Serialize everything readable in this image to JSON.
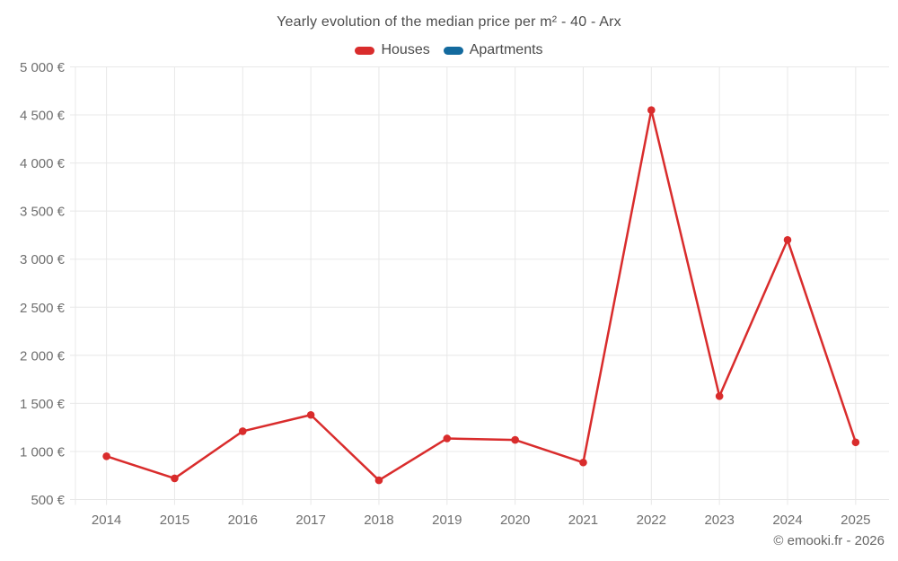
{
  "title": "Yearly evolution of the median price per m² - 40 - Arx",
  "legend": [
    {
      "label": "Houses",
      "color": "#d92c2c"
    },
    {
      "label": "Apartments",
      "color": "#136a9e"
    }
  ],
  "footer": {
    "copyright": "© emooki.fr - 2026"
  },
  "chart_data": {
    "type": "line",
    "title": "Yearly evolution of the median price per m² - 40 - Arx",
    "xlabel": "",
    "ylabel": "",
    "categories": [
      "2014",
      "2015",
      "2016",
      "2017",
      "2018",
      "2019",
      "2020",
      "2021",
      "2022",
      "2023",
      "2024",
      "2025"
    ],
    "series": [
      {
        "name": "Houses",
        "color": "#d92c2c",
        "values": [
          950,
          720,
          1210,
          1380,
          700,
          1135,
          1120,
          885,
          4550,
          1575,
          3200,
          1095
        ]
      },
      {
        "name": "Apartments",
        "color": "#136a9e",
        "values": []
      }
    ],
    "ylim": [
      500,
      5000
    ],
    "ytick_step": 500,
    "ytick_labels": [
      "500 €",
      "1 000 €",
      "1 500 €",
      "2 000 €",
      "2 500 €",
      "3 000 €",
      "3 500 €",
      "4 000 €",
      "4 500 €",
      "5 000 €"
    ],
    "currency": "€",
    "grid": true,
    "legend_position": "top",
    "marker": "circle",
    "marker_radius": 4.3
  }
}
